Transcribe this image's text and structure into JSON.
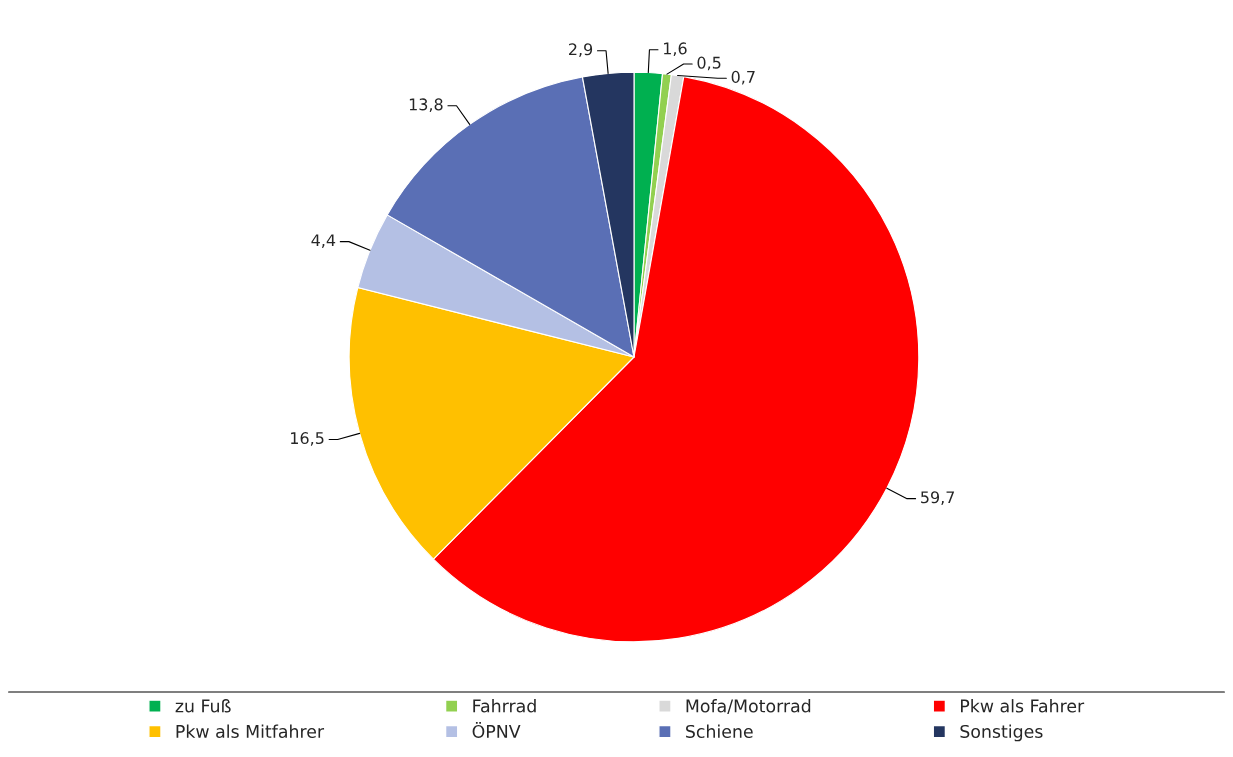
{
  "chart_data": {
    "type": "pie",
    "categories": [
      "zu Fuß",
      "Fahrrad",
      "Mofa/Motorrad",
      "Pkw als Fahrer",
      "Pkw als Mitfahrer",
      "ÖPNV",
      "Schiene",
      "Sonstiges"
    ],
    "values": [
      1.6,
      0.5,
      0.7,
      59.7,
      16.5,
      4.4,
      13.8,
      2.9
    ],
    "colors": [
      "#00b050",
      "#92d050",
      "#d9d9d9",
      "#ff0000",
      "#ffc000",
      "#b4c0e4",
      "#5a6fb5",
      "#243660"
    ],
    "value_labels": [
      "1,6",
      "0,5",
      "0,7",
      "59,7",
      "16,5",
      "4,4",
      "13,8",
      "2,9"
    ],
    "legend": "bottom"
  }
}
